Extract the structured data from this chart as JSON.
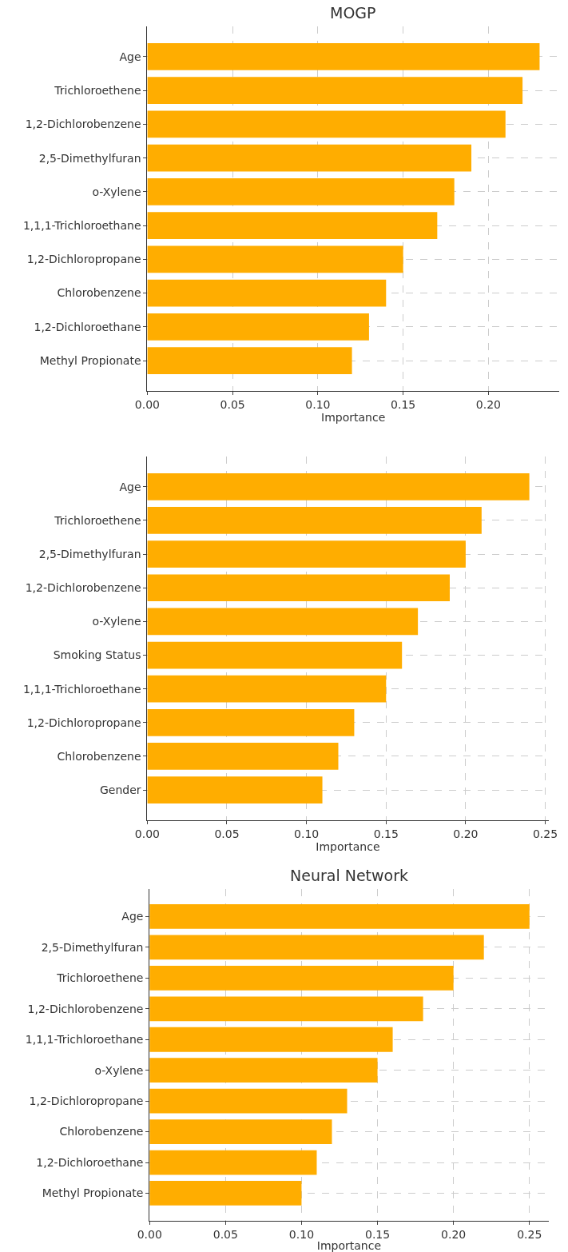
{
  "chart_data": [
    {
      "type": "bar",
      "orientation": "horizontal",
      "title": "MOGP",
      "xlabel": "Importance",
      "categories": [
        "Age",
        "Trichloroethene",
        "1,2-Dichlorobenzene",
        "2,5-Dimethylfuran",
        "o-Xylene",
        "1,1,1-Trichloroethane",
        "1,2-Dichloropropane",
        "Chlorobenzene",
        "1,2-Dichloroethane",
        "Methyl Propionate"
      ],
      "values": [
        0.23,
        0.22,
        0.21,
        0.19,
        0.18,
        0.17,
        0.15,
        0.14,
        0.13,
        0.12
      ],
      "color": "#ffad00",
      "xlim": [
        0,
        0.2415
      ],
      "xticks": [
        {
          "value": 0,
          "label": "0.00"
        },
        {
          "value": 0.05,
          "label": "0.05"
        },
        {
          "value": 0.1,
          "label": "0.10"
        },
        {
          "value": 0.15,
          "label": "0.15"
        },
        {
          "value": 0.2,
          "label": "0.20"
        }
      ],
      "grid": true
    },
    {
      "type": "bar",
      "orientation": "horizontal",
      "xlabel": "Importance",
      "categories": [
        "Age",
        "Trichloroethene",
        "2,5-Dimethylfuran",
        "1,2-Dichlorobenzene",
        "o-Xylene",
        "Smoking Status",
        "1,1,1-Trichloroethane",
        "1,2-Dichloropropane",
        "Chlorobenzene",
        "Gender"
      ],
      "values": [
        0.24,
        0.21,
        0.2,
        0.19,
        0.17,
        0.16,
        0.15,
        0.13,
        0.12,
        0.11
      ],
      "color": "#ffad00",
      "xlim": [
        0,
        0.252
      ],
      "xticks": [
        {
          "value": 0,
          "label": "0.00"
        },
        {
          "value": 0.05,
          "label": "0.05"
        },
        {
          "value": 0.1,
          "label": "0.10"
        },
        {
          "value": 0.15,
          "label": "0.15"
        },
        {
          "value": 0.2,
          "label": "0.20"
        },
        {
          "value": 0.25,
          "label": "0.25"
        }
      ],
      "grid": true
    },
    {
      "type": "bar",
      "orientation": "horizontal",
      "title": "Neural Network",
      "xlabel": "Importance",
      "categories": [
        "Age",
        "2,5-Dimethylfuran",
        "Trichloroethene",
        "1,2-Dichlorobenzene",
        "1,1,1-Trichloroethane",
        "o-Xylene",
        "1,2-Dichloropropane",
        "Chlorobenzene",
        "1,2-Dichloroethane",
        "Methyl Propionate"
      ],
      "values": [
        0.25,
        0.22,
        0.2,
        0.18,
        0.16,
        0.15,
        0.13,
        0.12,
        0.11,
        0.1
      ],
      "color": "#ffad00",
      "xlim": [
        0,
        0.2625
      ],
      "xticks": [
        {
          "value": 0,
          "label": "0.00"
        },
        {
          "value": 0.05,
          "label": "0.05"
        },
        {
          "value": 0.1,
          "label": "0.10"
        },
        {
          "value": 0.15,
          "label": "0.15"
        },
        {
          "value": 0.2,
          "label": "0.20"
        },
        {
          "value": 0.25,
          "label": "0.25"
        }
      ],
      "grid": true
    }
  ]
}
